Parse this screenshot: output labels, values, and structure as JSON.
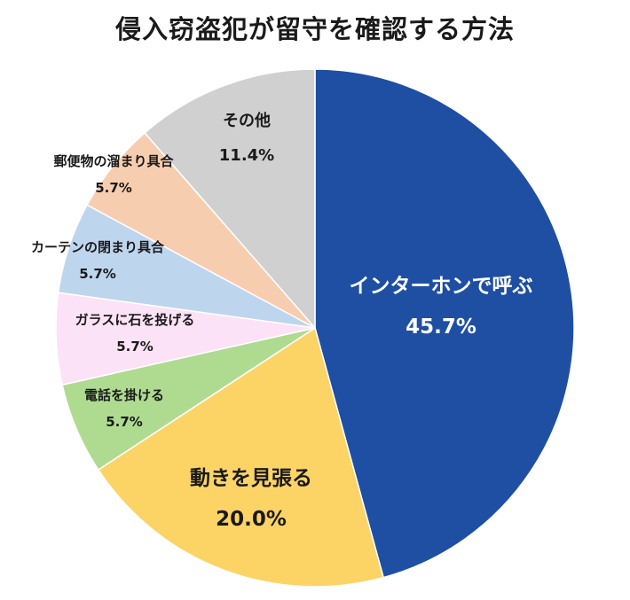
{
  "chart_data": {
    "type": "pie",
    "title": "侵入窃盗犯が留守を確認する方法",
    "slices": [
      {
        "label": "インターホンで呼ぶ",
        "value": 45.7,
        "value_label": "45.7%",
        "color": "#1e4fa3",
        "text_color": "#ffffff",
        "size": "large"
      },
      {
        "label": "動きを見張る",
        "value": 20.0,
        "value_label": "20.0%",
        "color": "#fcd466",
        "text_color": "#1a1a1a",
        "size": "large"
      },
      {
        "label": "電話を掛ける",
        "value": 5.7,
        "value_label": "5.7%",
        "color": "#aedb90",
        "text_color": "#1a1a1a",
        "size": "small"
      },
      {
        "label": "ガラスに石を投げる",
        "value": 5.7,
        "value_label": "5.7%",
        "color": "#fce2f6",
        "text_color": "#1a1a1a",
        "size": "small"
      },
      {
        "label": "カーテンの閉まり具合",
        "value": 5.7,
        "value_label": "5.7%",
        "color": "#bed5ee",
        "text_color": "#1a1a1a",
        "size": "small"
      },
      {
        "label": "郵便物の溜まり具合",
        "value": 5.7,
        "value_label": "5.7%",
        "color": "#f7cdb0",
        "text_color": "#1a1a1a",
        "size": "small"
      },
      {
        "label": "その他",
        "value": 11.4,
        "value_label": "11.4%",
        "color": "#d0d0d0",
        "text_color": "#1a1a1a",
        "size": "medium"
      }
    ]
  }
}
